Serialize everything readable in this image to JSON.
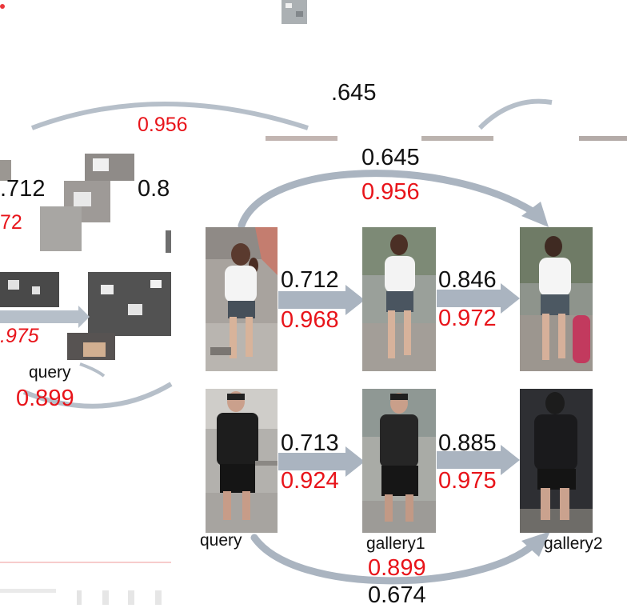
{
  "colors": {
    "arrow": "#aab4c0",
    "red": "#e8141a",
    "black": "#111111"
  },
  "ghost_labels": {
    "query": "query",
    "top_score": ".645",
    "left_a": ".712",
    "left_b": "0.8",
    "red_a": "0.956",
    "red_b": "0.899",
    "red_c": ".975",
    "red_d": "72"
  },
  "row1": {
    "arc_top_black": "0.645",
    "arc_top_red": "0.956",
    "pair1_black": "0.712",
    "pair1_red": "0.968",
    "pair2_black": "0.846",
    "pair2_red": "0.972"
  },
  "row2": {
    "pair1_black": "0.713",
    "pair1_red": "0.924",
    "pair2_black": "0.885",
    "pair2_red": "0.975",
    "arc_bottom_red": "0.899",
    "arc_bottom_black": "0.674"
  },
  "captions": {
    "query": "query",
    "gallery1": "gallery1",
    "gallery2": "gallery2"
  }
}
